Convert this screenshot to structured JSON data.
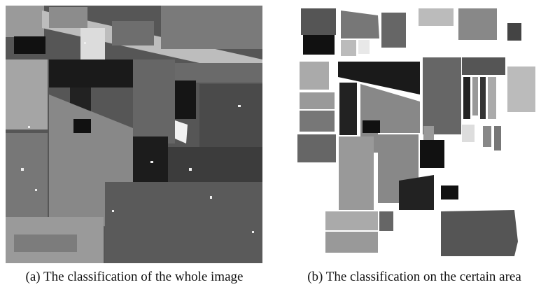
{
  "panels": [
    {
      "caption": "(a) The classification of the whole image"
    },
    {
      "caption": "(b) The classification on the certain area"
    }
  ]
}
